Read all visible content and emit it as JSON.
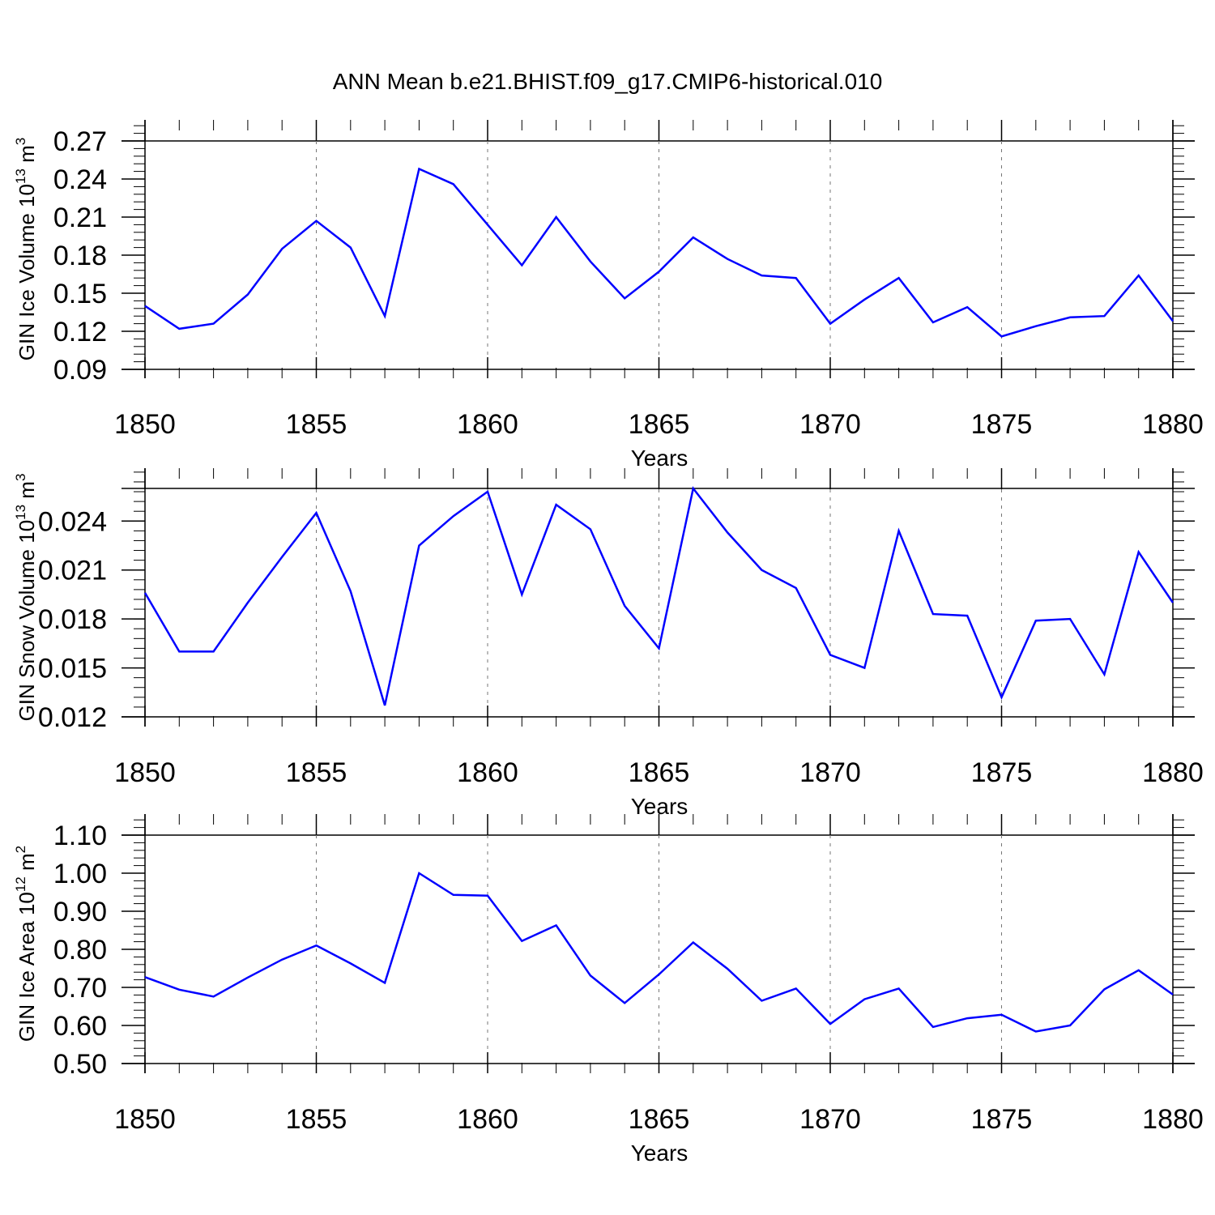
{
  "title": "ANN Mean b.e21.BHIST.f09_g17.CMIP6-historical.010",
  "chart_data": [
    {
      "type": "line",
      "title": "ANN Mean b.e21.BHIST.f09_g17.CMIP6-historical.010",
      "xlabel": "Years",
      "ylabel": "GIN Ice Volume 10",
      "ylabel_exp": "13",
      "ylabel_unit": "m",
      "ylabel_unit_exp": "3",
      "xlim": [
        1850,
        1880
      ],
      "ylim": [
        0.09,
        0.27
      ],
      "yticks": [
        "0.09",
        "0.12",
        "0.15",
        "0.18",
        "0.21",
        "0.24",
        "0.27"
      ],
      "xticks": [
        "1850",
        "1855",
        "1860",
        "1865",
        "1870",
        "1875",
        "1880"
      ],
      "grid": "vertical dashed at major x ticks",
      "line_color": "#0000ff",
      "x": [
        1850,
        1851,
        1852,
        1853,
        1854,
        1855,
        1856,
        1857,
        1858,
        1859,
        1860,
        1861,
        1862,
        1863,
        1864,
        1865,
        1866,
        1867,
        1868,
        1869,
        1870,
        1871,
        1872,
        1873,
        1874,
        1875,
        1876,
        1877,
        1878,
        1879,
        1880
      ],
      "values": [
        0.14,
        0.122,
        0.126,
        0.149,
        0.185,
        0.207,
        0.186,
        0.132,
        0.248,
        0.236,
        0.204,
        0.172,
        0.21,
        0.175,
        0.146,
        0.167,
        0.194,
        0.177,
        0.164,
        0.162,
        0.126,
        0.145,
        0.162,
        0.127,
        0.139,
        0.116,
        0.124,
        0.131,
        0.132,
        0.164,
        0.128
      ]
    },
    {
      "type": "line",
      "xlabel": "Years",
      "ylabel": "GIN Snow Volume 10",
      "ylabel_exp": "13",
      "ylabel_unit": "m",
      "ylabel_unit_exp": "3",
      "xlim": [
        1850,
        1880
      ],
      "ylim": [
        0.012,
        0.026
      ],
      "yticks": [
        "0.012",
        "0.015",
        "0.018",
        "0.021",
        "0.024"
      ],
      "xticks": [
        "1850",
        "1855",
        "1860",
        "1865",
        "1870",
        "1875",
        "1880"
      ],
      "grid": "vertical dashed at major x ticks",
      "line_color": "#0000ff",
      "x": [
        1850,
        1851,
        1852,
        1853,
        1854,
        1855,
        1856,
        1857,
        1858,
        1859,
        1860,
        1861,
        1862,
        1863,
        1864,
        1865,
        1866,
        1867,
        1868,
        1869,
        1870,
        1871,
        1872,
        1873,
        1874,
        1875,
        1876,
        1877,
        1878,
        1879,
        1880
      ],
      "values": [
        0.0196,
        0.016,
        0.016,
        0.019,
        0.0218,
        0.0245,
        0.0197,
        0.0127,
        0.0225,
        0.0243,
        0.0258,
        0.0195,
        0.025,
        0.0235,
        0.0188,
        0.0162,
        0.026,
        0.0233,
        0.021,
        0.0199,
        0.0158,
        0.015,
        0.0234,
        0.0183,
        0.0182,
        0.0132,
        0.0179,
        0.018,
        0.0146,
        0.0221,
        0.019
      ]
    },
    {
      "type": "line",
      "xlabel": "Years",
      "ylabel": "GIN Ice Area 10",
      "ylabel_exp": "12",
      "ylabel_unit": "m",
      "ylabel_unit_exp": "2",
      "xlim": [
        1850,
        1880
      ],
      "ylim": [
        0.5,
        1.1
      ],
      "yticks": [
        "0.50",
        "0.60",
        "0.70",
        "0.80",
        "0.90",
        "1.00",
        "1.10"
      ],
      "xticks": [
        "1850",
        "1855",
        "1860",
        "1865",
        "1870",
        "1875",
        "1880"
      ],
      "grid": "vertical dashed at major x ticks",
      "line_color": "#0000ff",
      "x": [
        1850,
        1851,
        1852,
        1853,
        1854,
        1855,
        1856,
        1857,
        1858,
        1859,
        1860,
        1861,
        1862,
        1863,
        1864,
        1865,
        1866,
        1867,
        1868,
        1869,
        1870,
        1871,
        1872,
        1873,
        1874,
        1875,
        1876,
        1877,
        1878,
        1879,
        1880
      ],
      "values": [
        0.727,
        0.694,
        0.676,
        0.726,
        0.773,
        0.81,
        0.763,
        0.712,
        1.0,
        0.943,
        0.941,
        0.822,
        0.863,
        0.731,
        0.659,
        0.734,
        0.818,
        0.749,
        0.665,
        0.697,
        0.604,
        0.669,
        0.697,
        0.596,
        0.619,
        0.628,
        0.584,
        0.6,
        0.695,
        0.745,
        0.681
      ]
    }
  ]
}
